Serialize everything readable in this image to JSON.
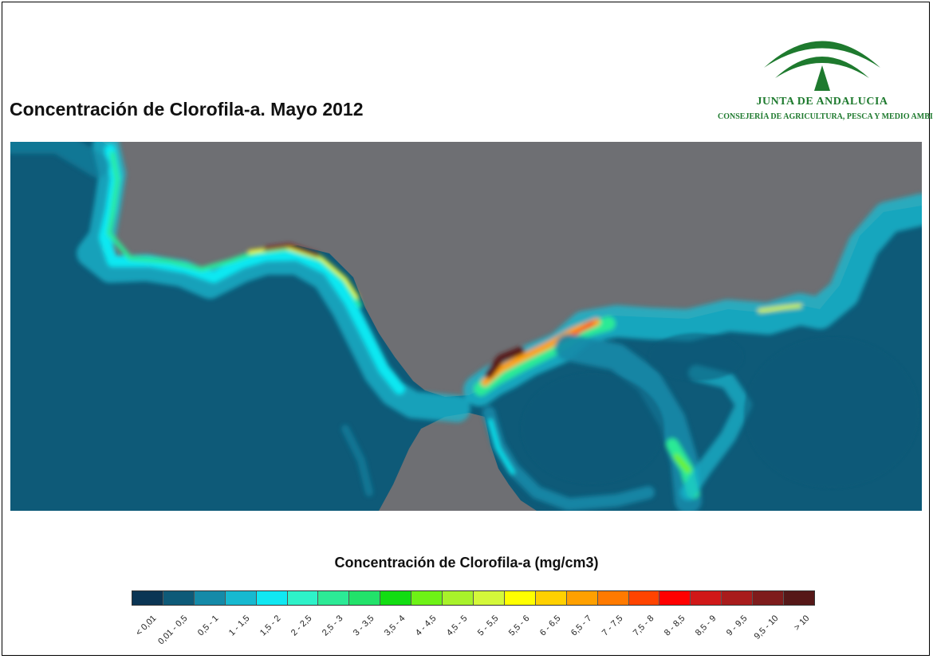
{
  "title": "Concentración de Clorofila-a. Mayo 2012",
  "logo": {
    "name": "JUNTA DE ANDALUCIA",
    "subtitle": "CONSEJERÍA DE AGRICULTURA, PESCA Y MEDIO AMBIENTE",
    "color": "#1e7a2e"
  },
  "map": {
    "land_color": "#6e6f73",
    "sea_base_color": "#0e5a78"
  },
  "legend": {
    "title": "Concentración de Clorofila-a (mg/cm3)",
    "classes": [
      {
        "label": "< 0,01",
        "color": "#0b3554"
      },
      {
        "label": "0,01 - 0,5",
        "color": "#0e5a78"
      },
      {
        "label": "0,5 - 1",
        "color": "#158aa8"
      },
      {
        "label": "1 - 1,5",
        "color": "#17b9d0"
      },
      {
        "label": "1,5 - 2",
        "color": "#10e8f2"
      },
      {
        "label": "2 - 2,5",
        "color": "#2ef2c9"
      },
      {
        "label": "2,5 - 3",
        "color": "#2cea96"
      },
      {
        "label": "3 - 3,5",
        "color": "#22e26a"
      },
      {
        "label": "3,5 - 4",
        "color": "#12dd12"
      },
      {
        "label": "4 - 4,5",
        "color": "#6ef216"
      },
      {
        "label": "4,5 - 5",
        "color": "#a8f22a"
      },
      {
        "label": "5 - 5,5",
        "color": "#d4f83a"
      },
      {
        "label": "5,5 - 6",
        "color": "#ffff00"
      },
      {
        "label": "6 - 6,5",
        "color": "#ffd000"
      },
      {
        "label": "6,5 - 7",
        "color": "#ffa000"
      },
      {
        "label": "7 - 7,5",
        "color": "#ff7a00"
      },
      {
        "label": "7,5 - 8",
        "color": "#ff4400"
      },
      {
        "label": "8 - 8,5",
        "color": "#ff0000"
      },
      {
        "label": "8,5 - 9",
        "color": "#d01818"
      },
      {
        "label": "9 - 9,5",
        "color": "#a81c1c"
      },
      {
        "label": "9,5 - 10",
        "color": "#7e1c1c"
      },
      {
        "label": "> 10",
        "color": "#561818"
      }
    ]
  }
}
